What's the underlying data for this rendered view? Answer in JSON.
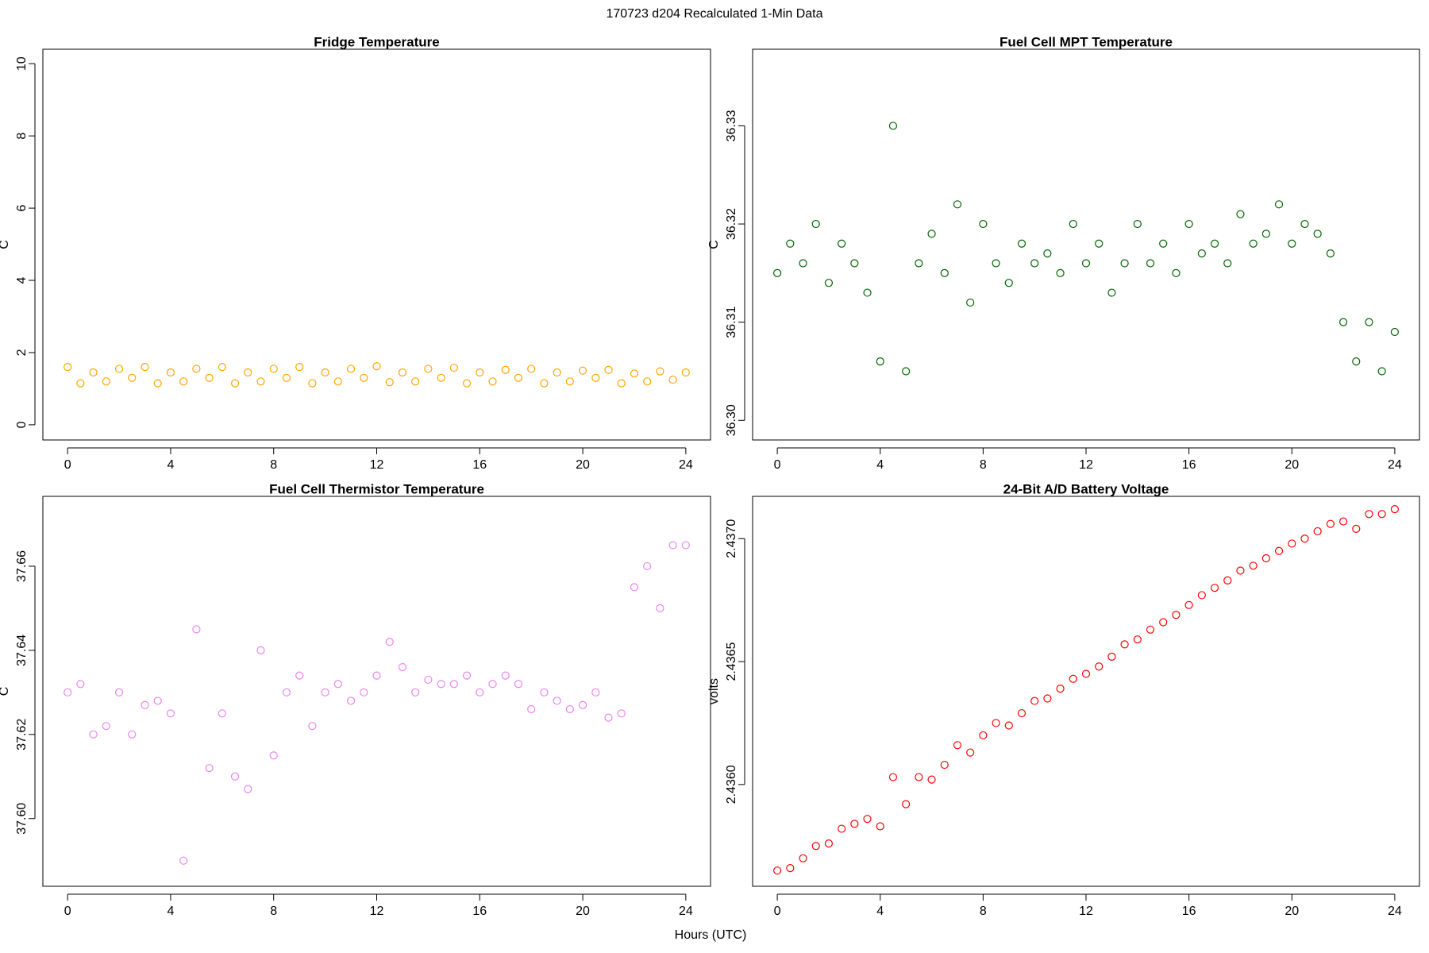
{
  "title": "170723   d204   Recalculated 1-Min Data",
  "xlabel": "Hours (UTC)",
  "chart_data": [
    {
      "type": "scatter",
      "title": "Fridge Temperature",
      "ylabel": "C",
      "color": "#ffa500",
      "x": [
        0,
        0.5,
        1,
        1.5,
        2,
        2.5,
        3,
        3.5,
        4,
        4.5,
        5,
        5.5,
        6,
        6.5,
        7,
        7.5,
        8,
        8.5,
        9,
        9.5,
        10,
        10.5,
        11,
        11.5,
        12,
        12.5,
        13,
        13.5,
        14,
        14.5,
        15,
        15.5,
        16,
        16.5,
        17,
        17.5,
        18,
        18.5,
        19,
        19.5,
        20,
        20.5,
        21,
        21.5,
        22,
        22.5,
        23,
        23.5,
        24
      ],
      "values": [
        1.6,
        1.15,
        1.45,
        1.2,
        1.55,
        1.3,
        1.6,
        1.15,
        1.45,
        1.2,
        1.55,
        1.3,
        1.6,
        1.15,
        1.45,
        1.2,
        1.55,
        1.3,
        1.6,
        1.15,
        1.45,
        1.2,
        1.55,
        1.3,
        1.62,
        1.18,
        1.45,
        1.2,
        1.55,
        1.3,
        1.58,
        1.15,
        1.45,
        1.2,
        1.52,
        1.3,
        1.55,
        1.15,
        1.45,
        1.2,
        1.5,
        1.3,
        1.52,
        1.15,
        1.42,
        1.2,
        1.48,
        1.25,
        1.45
      ],
      "xlim": [
        -0.96,
        24.96
      ],
      "xticks": [
        0,
        4,
        8,
        12,
        16,
        20,
        24
      ],
      "ylim": [
        -0.42,
        10.4
      ],
      "yticks": [
        0,
        2,
        4,
        6,
        8,
        10
      ]
    },
    {
      "type": "scatter",
      "title": "Fuel Cell MPT Temperature",
      "ylabel": "C",
      "color": "#006400",
      "x": [
        0,
        0.5,
        1,
        1.5,
        2,
        2.5,
        3,
        3.5,
        4,
        4.5,
        5,
        5.5,
        6,
        6.5,
        7,
        7.5,
        8,
        8.5,
        9,
        9.5,
        10,
        10.5,
        11,
        11.5,
        12,
        12.5,
        13,
        13.5,
        14,
        14.5,
        15,
        15.5,
        16,
        16.5,
        17,
        17.5,
        18,
        18.5,
        19,
        19.5,
        20,
        20.5,
        21,
        21.5,
        22,
        22.5,
        23,
        23.5,
        24
      ],
      "values": [
        36.315,
        36.318,
        36.316,
        36.32,
        36.314,
        36.318,
        36.316,
        36.313,
        36.306,
        36.33,
        36.305,
        36.316,
        36.319,
        36.315,
        36.322,
        36.312,
        36.32,
        36.316,
        36.314,
        36.318,
        36.316,
        36.317,
        36.315,
        36.32,
        36.316,
        36.318,
        36.313,
        36.316,
        36.32,
        36.316,
        36.318,
        36.315,
        36.32,
        36.317,
        36.318,
        36.316,
        36.321,
        36.318,
        36.319,
        36.322,
        36.318,
        36.32,
        36.319,
        36.317,
        36.31,
        36.306,
        36.31,
        36.305,
        36.309
      ],
      "xlim": [
        -0.96,
        24.96
      ],
      "xticks": [
        0,
        4,
        8,
        12,
        16,
        20,
        24
      ],
      "ylim": [
        36.298,
        36.3378
      ],
      "yticks": [
        {
          "value": 36.3,
          "label": "36.30"
        },
        36.31,
        36.32,
        36.33
      ]
    },
    {
      "type": "scatter",
      "title": "Fuel Cell Thermistor Temperature",
      "ylabel": "C",
      "color": "#ee82ee",
      "x": [
        0,
        0.5,
        1,
        1.5,
        2,
        2.5,
        3,
        3.5,
        4,
        4.5,
        5,
        5.5,
        6,
        6.5,
        7,
        7.5,
        8,
        8.5,
        9,
        9.5,
        10,
        10.5,
        11,
        11.5,
        12,
        12.5,
        13,
        13.5,
        14,
        14.5,
        15,
        15.5,
        16,
        16.5,
        17,
        17.5,
        18,
        18.5,
        19,
        19.5,
        20,
        20.5,
        21,
        21.5,
        22,
        22.5,
        23,
        23.5,
        24
      ],
      "values": [
        37.63,
        37.632,
        37.62,
        37.622,
        37.63,
        37.62,
        37.627,
        37.628,
        37.625,
        37.59,
        37.645,
        37.612,
        37.625,
        37.61,
        37.607,
        37.64,
        37.615,
        37.63,
        37.634,
        37.622,
        37.63,
        37.632,
        37.628,
        37.63,
        37.634,
        37.642,
        37.636,
        37.63,
        37.633,
        37.632,
        37.632,
        37.634,
        37.63,
        37.632,
        37.634,
        37.632,
        37.626,
        37.63,
        37.628,
        37.626,
        37.627,
        37.63,
        37.624,
        37.625,
        37.655,
        37.66,
        37.65,
        37.665,
        37.665
      ],
      "xlim": [
        -0.96,
        24.96
      ],
      "xticks": [
        0,
        4,
        8,
        12,
        16,
        20,
        24
      ],
      "ylim": [
        37.5839,
        37.6766
      ],
      "yticks": [
        {
          "value": 37.6,
          "label": "37.60"
        },
        37.62,
        37.64,
        37.66
      ]
    },
    {
      "type": "scatter",
      "title": "24-Bit A/D Battery Voltage",
      "ylabel": "volts",
      "color": "#ff0000",
      "x": [
        0,
        0.5,
        1,
        1.5,
        2,
        2.5,
        3,
        3.5,
        4,
        4.5,
        5,
        5.5,
        6,
        6.5,
        7,
        7.5,
        8,
        8.5,
        9,
        9.5,
        10,
        10.5,
        11,
        11.5,
        12,
        12.5,
        13,
        13.5,
        14,
        14.5,
        15,
        15.5,
        16,
        16.5,
        17,
        17.5,
        18,
        18.5,
        19,
        19.5,
        20,
        20.5,
        21,
        21.5,
        22,
        22.5,
        23,
        23.5,
        24
      ],
      "values": [
        2.43565,
        2.43566,
        2.4357,
        2.43575,
        2.43576,
        2.43582,
        2.43584,
        2.43586,
        2.43583,
        2.43603,
        2.43592,
        2.43603,
        2.43602,
        2.43608,
        2.43616,
        2.43613,
        2.4362,
        2.43625,
        2.43624,
        2.43629,
        2.43634,
        2.43635,
        2.43639,
        2.43643,
        2.43645,
        2.43648,
        2.43652,
        2.43657,
        2.43659,
        2.43663,
        2.43666,
        2.43669,
        2.43673,
        2.43677,
        2.4368,
        2.43683,
        2.43687,
        2.43689,
        2.43692,
        2.43695,
        2.43698,
        2.437,
        2.43703,
        2.43706,
        2.43707,
        2.43704,
        2.4371,
        2.4371,
        2.43712
      ],
      "xlim": [
        -0.96,
        24.96
      ],
      "xticks": [
        0,
        4,
        8,
        12,
        16,
        20,
        24
      ],
      "ylim": [
        2.435586,
        2.437172
      ],
      "yticks": [
        {
          "value": 2.436,
          "label": "2.4360"
        },
        {
          "value": 2.4365,
          "label": "2.4365"
        },
        {
          "value": 2.437,
          "label": "2.4370"
        }
      ]
    }
  ]
}
